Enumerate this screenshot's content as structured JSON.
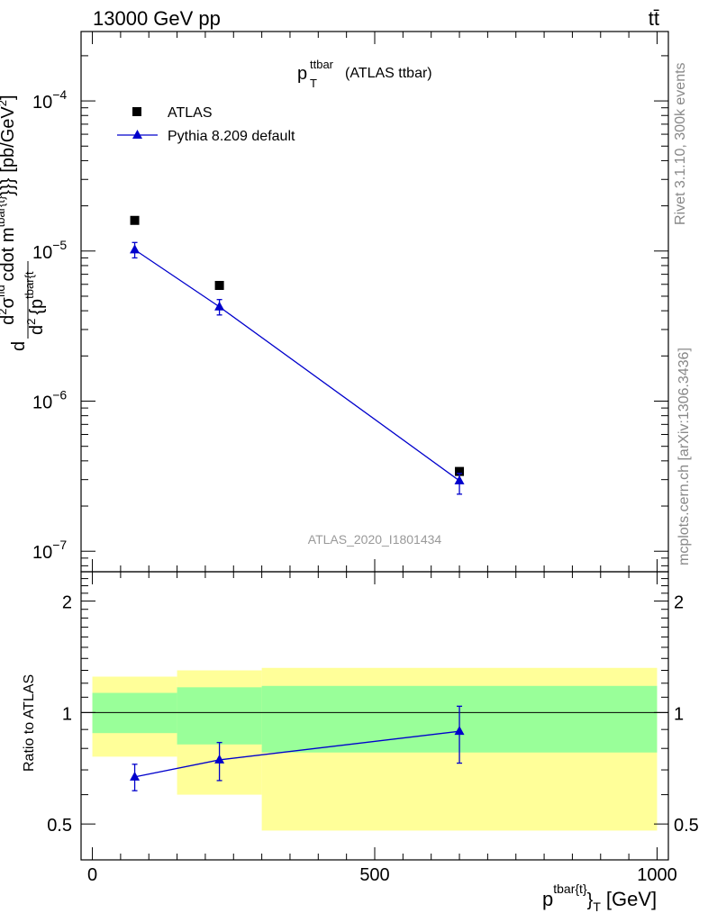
{
  "header": {
    "left": "13000 GeV pp",
    "right": "tt̄"
  },
  "side": {
    "rivet": "Rivet 3.1.10,  300k events",
    "mcplots": "mcplots.cern.ch [arXiv:1306.3436]"
  },
  "main": {
    "title_main": "p",
    "title_sup": "ttbar",
    "title_sub": "T",
    "title_rest": "(ATLAS ttbar)",
    "watermark": "ATLAS_2020_I1801434",
    "ylabel": "d²σ / d²{p_T^{tbar{t}}} cdot m^{tbar{t}}} [pb/GeV²]",
    "ylabel_parts": {
      "d1": "d",
      "d2": "d",
      "sig": "σ",
      "fid": "fid",
      "sq1": "2",
      "sq2": "2",
      "den": "{p",
      "tbarT": "tbar{t",
      "cdot": "cdot m",
      "mexp": "tbar{t}",
      "braces": "}}}",
      "units": "[pb/GeV",
      "unitsExp": "2",
      "close": "]"
    },
    "y_ticks": [
      {
        "base": "10",
        "exp": "−4",
        "value": 0.0001
      },
      {
        "base": "10",
        "exp": "−5",
        "value": 1e-05
      },
      {
        "base": "10",
        "exp": "−6",
        "value": 1e-06
      },
      {
        "base": "10",
        "exp": "−7",
        "value": 1e-07
      }
    ]
  },
  "legend": {
    "atlas": "ATLAS",
    "pythia": "Pythia 8.209 default"
  },
  "ratio": {
    "ylabel": "Ratio to ATLAS",
    "y_ticks_left": [
      "0.5",
      "1",
      "2"
    ],
    "y_ticks_right": [
      "0.5",
      "1",
      "2"
    ]
  },
  "xaxis": {
    "ticks": [
      "0",
      "500",
      "1000"
    ],
    "label_p": "p",
    "label_sup": "tbar{t}",
    "label_brace": "}",
    "label_sub": "T",
    "label_unit": "[GeV]"
  },
  "colors": {
    "data": "#000000",
    "mc": "#0000cc",
    "band_inner": "#99ff99",
    "band_outer": "#ffff99"
  },
  "chart_data": [
    {
      "type": "scatter",
      "title": "p_T^{ttbar} (ATLAS ttbar)",
      "xlabel": "p^{tbar{t}}}_T [GeV]",
      "ylabel": "d²σ^fid / d²{p_T^{tbar{t}} cdot m^{tbar{t}}}} [pb/GeV²]",
      "xlim": [
        -20,
        1020
      ],
      "ylim": [
        7.3e-08,
        0.00029
      ],
      "yscale": "log",
      "series": [
        {
          "name": "ATLAS",
          "marker": "square",
          "x": [
            75,
            225,
            650
          ],
          "y": [
            1.6e-05,
            5.9e-06,
            3.4e-07
          ]
        },
        {
          "name": "Pythia 8.209 default",
          "marker": "triangle",
          "x": [
            75,
            225,
            650
          ],
          "y": [
            1.02e-05,
            4.25e-06,
            2.95e-07
          ],
          "yerr_low": [
            1.2e-06,
            5e-07,
            5.5e-08
          ],
          "yerr_high": [
            1.2e-06,
            5e-07,
            3.5e-08
          ]
        }
      ]
    },
    {
      "type": "line",
      "ylabel": "Ratio to ATLAS",
      "xlabel": "p^{tbar{t}}}_T [GeV]",
      "xlim": [
        -20,
        1020
      ],
      "ylim": [
        0.4,
        2.4
      ],
      "bands": {
        "bin_edges": [
          0,
          150,
          300,
          1000
        ],
        "outer_low": [
          0.76,
          0.6,
          0.48
        ],
        "outer_high": [
          1.25,
          1.3,
          1.32
        ],
        "inner_low": [
          0.88,
          0.82,
          0.78
        ],
        "inner_high": [
          1.13,
          1.17,
          1.18
        ]
      },
      "series": [
        {
          "name": "Pythia 8.209 default",
          "x": [
            75,
            225,
            650
          ],
          "y": [
            0.67,
            0.745,
            0.89
          ],
          "yerr_low": [
            0.055,
            0.09,
            0.16
          ],
          "yerr_high": [
            0.055,
            0.085,
            0.15
          ]
        }
      ]
    }
  ]
}
